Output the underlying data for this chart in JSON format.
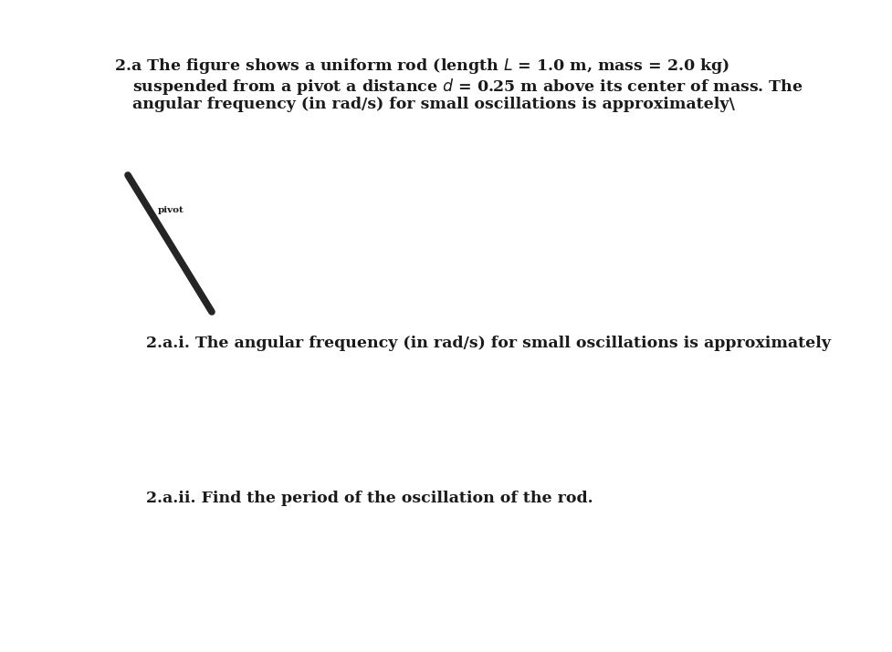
{
  "background_color": "#ffffff",
  "text_color": "#1a1a1a",
  "line1": "2.a The figure shows a uniform rod (length $L$ = 1.0 m, mass = 2.0 kg)",
  "line2": "    suspended from a pivot a distance $d$ = 0.25 m above its center of mass. The",
  "line3": "    angular frequency (in rad/s) for small oscillations is approximately\\",
  "subq1": "2.a.i. The angular frequency (in rad/s) for small oscillations is approximately",
  "subq2": "2.a.ii. Find the period of the oscillation of the rod.",
  "pivot_label": "pivot",
  "rod_color": "#252525",
  "rod_linewidth": 5.5,
  "font_size_main": 12.5,
  "font_size_sub": 12.5,
  "font_size_pivot": 7.5
}
